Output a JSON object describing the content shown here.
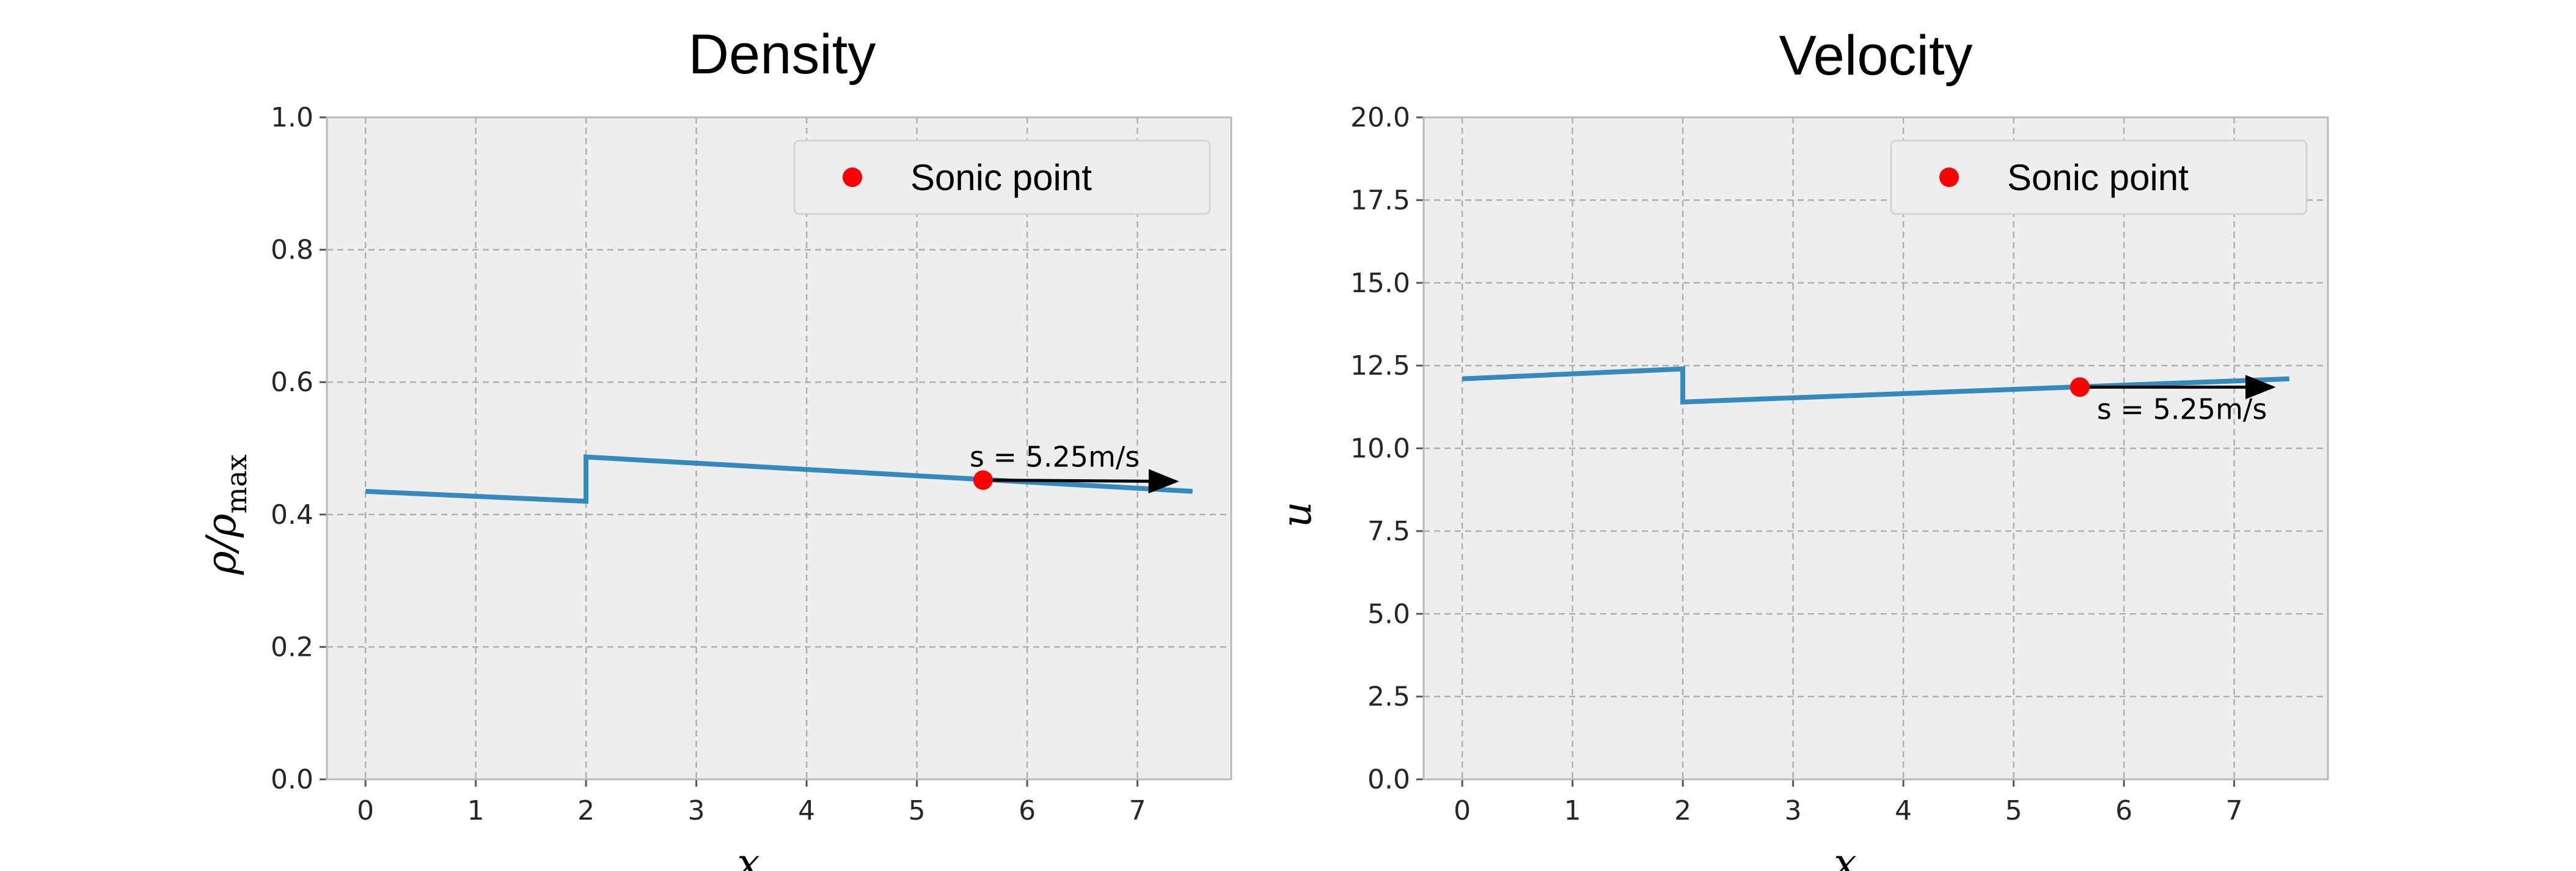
{
  "chart_data": [
    {
      "type": "line",
      "title": "Density",
      "xlabel": "x",
      "ylabel": "ρ/ρ_max",
      "xlim": [
        -0.35,
        7.85
      ],
      "ylim": [
        0.0,
        1.0
      ],
      "xticks": [
        "0",
        "1",
        "2",
        "3",
        "4",
        "5",
        "6",
        "7"
      ],
      "yticks": [
        "0.0",
        "0.2",
        "0.4",
        "0.6",
        "0.8",
        "1.0"
      ],
      "grid": true,
      "legend": {
        "placement": "top-right",
        "entries": [
          "Sonic point"
        ]
      },
      "series": [
        {
          "x": [
            0,
            2,
            2,
            7.5
          ],
          "y": [
            0.435,
            0.42,
            0.487,
            0.435
          ],
          "color": "#348abd"
        }
      ],
      "markers": [
        {
          "x": 5.6,
          "y": 0.452,
          "color": "#ff0000"
        }
      ],
      "annotation": {
        "text": "s = 5.25m/s",
        "arrow_from": [
          5.6,
          0.452
        ],
        "arrow_to": [
          7.35,
          0.45
        ]
      }
    },
    {
      "type": "line",
      "title": "Velocity",
      "xlabel": "x",
      "ylabel": "u",
      "xlim": [
        -0.35,
        7.85
      ],
      "ylim": [
        0.0,
        20.0
      ],
      "xticks": [
        "0",
        "1",
        "2",
        "3",
        "4",
        "5",
        "6",
        "7"
      ],
      "yticks": [
        "0.0",
        "2.5",
        "5.0",
        "7.5",
        "10.0",
        "12.5",
        "15.0",
        "17.5",
        "20.0"
      ],
      "grid": true,
      "legend": {
        "placement": "top-right",
        "entries": [
          "Sonic point"
        ]
      },
      "series": [
        {
          "x": [
            0,
            2,
            2,
            7.5
          ],
          "y": [
            12.1,
            12.4,
            11.4,
            12.1
          ],
          "color": "#348abd"
        }
      ],
      "markers": [
        {
          "x": 5.6,
          "y": 11.85,
          "color": "#ff0000"
        }
      ],
      "annotation": {
        "text": "s = 5.25m/s",
        "arrow_from": [
          5.6,
          11.85
        ],
        "arrow_to": [
          7.35,
          11.85
        ]
      }
    }
  ]
}
